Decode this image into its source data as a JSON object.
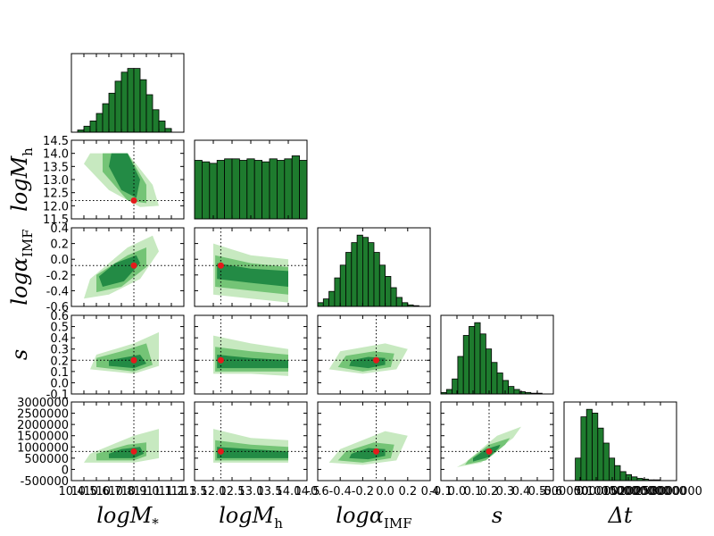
{
  "chart_data": {
    "type": "corner",
    "variables": [
      {
        "label": "logM",
        "sub": "*",
        "lim": [
          10.4,
          11.3
        ],
        "ticks": [
          10.4,
          10.5,
          10.6,
          10.7,
          10.8,
          10.9,
          {
            "value": 11,
            "label": "11.0"
          },
          11.1,
          11.2,
          11.3
        ],
        "bins": [
          10.45,
          10.5,
          10.55,
          10.6,
          10.65,
          10.7,
          10.75,
          10.8,
          10.85,
          10.9,
          10.95,
          11.0,
          11.05,
          11.1,
          11.15,
          11.2
        ],
        "counts": [
          3,
          8,
          15,
          25,
          38,
          52,
          68,
          80,
          85,
          85,
          70,
          50,
          30,
          15,
          5
        ]
      },
      {
        "label": "logM",
        "sub": "h",
        "lim": [
          11.5,
          14.5
        ],
        "ticks": [
          11.5,
          {
            "value": 12,
            "label": "12.0"
          },
          12.5,
          {
            "value": 13,
            "label": "13.0"
          },
          13.5,
          {
            "value": 14,
            "label": "14.0"
          },
          14.5
        ],
        "bins": [
          11.5,
          11.7,
          11.9,
          12.1,
          12.3,
          12.5,
          12.7,
          12.9,
          13.1,
          13.3,
          13.5,
          13.7,
          13.9,
          14.1,
          14.3,
          14.5
        ],
        "counts": [
          78,
          76,
          74,
          78,
          80,
          80,
          78,
          80,
          78,
          76,
          80,
          78,
          80,
          84,
          78
        ]
      },
      {
        "label": "logα",
        "sub": "IMF",
        "lim": [
          -0.6,
          0.4
        ],
        "ticks": [
          -0.6,
          -0.4,
          -0.2,
          {
            "value": 0,
            "label": "0.0"
          },
          0.2,
          0.4
        ],
        "bins": [
          -0.6,
          -0.55,
          -0.5,
          -0.45,
          -0.4,
          -0.35,
          -0.3,
          -0.25,
          -0.2,
          -0.15,
          -0.1,
          -0.05,
          0,
          0.05,
          0.1,
          0.15,
          0.2,
          0.25,
          0.3,
          0.35,
          0.4
        ],
        "counts": [
          5,
          10,
          20,
          38,
          55,
          72,
          85,
          95,
          92,
          85,
          72,
          55,
          40,
          25,
          12,
          5,
          2,
          1,
          0,
          0
        ]
      },
      {
        "label": "s",
        "sub": "",
        "lim": [
          -0.1,
          0.6
        ],
        "ticks": [
          -0.1,
          {
            "value": 0,
            "label": "0.0"
          },
          0.1,
          0.2,
          0.3,
          0.4,
          0.5,
          0.6
        ],
        "bins": [
          -0.1,
          -0.065,
          -0.03,
          0.005,
          0.04,
          0.075,
          0.11,
          0.145,
          0.18,
          0.215,
          0.25,
          0.285,
          0.32,
          0.355,
          0.39,
          0.425,
          0.46,
          0.495,
          0.53,
          0.565,
          0.6
        ],
        "counts": [
          2,
          6,
          20,
          50,
          78,
          90,
          95,
          80,
          60,
          42,
          28,
          18,
          10,
          6,
          3,
          2,
          1,
          1,
          0,
          0
        ]
      },
      {
        "label": "Δt",
        "sub": "",
        "lim": [
          -500000,
          3000000
        ],
        "ticks": [
          -500000,
          0,
          500000,
          1000000,
          1500000,
          2000000,
          2500000,
          3000000
        ],
        "bins": [
          -500000,
          -325000,
          -150000,
          25000,
          200000,
          375000,
          550000,
          725000,
          900000,
          1075000,
          1250000,
          1425000,
          1600000,
          1775000,
          1950000,
          2125000,
          2300000,
          2475000,
          2650000,
          2825000,
          3000000
        ],
        "counts": [
          0,
          0,
          30,
          85,
          95,
          90,
          70,
          50,
          30,
          20,
          12,
          8,
          5,
          3,
          2,
          1,
          1,
          0,
          0,
          0
        ]
      }
    ],
    "hist_ylim": [
      0,
      100
    ],
    "truth": [
      10.9,
      12.2,
      -0.08,
      0.2,
      800000
    ],
    "contour_colors": [
      "#c7e9c0",
      "#74c476",
      "#238b45"
    ],
    "hist_color": "#1e7b2e",
    "pairs": [
      {
        "col": 0,
        "row": 1,
        "contours": [
          {
            "x": [
              10.55,
              10.85,
              11.05,
              11.1,
              10.95,
              10.7,
              10.5
            ],
            "y": [
              14.0,
              14.0,
              12.8,
              12.0,
              11.95,
              12.6,
              13.6
            ]
          },
          {
            "x": [
              10.65,
              10.85,
              11.0,
              11.0,
              10.85,
              10.65
            ],
            "y": [
              14.0,
              14.0,
              12.8,
              12.1,
              12.2,
              13.3
            ]
          },
          {
            "x": [
              10.72,
              10.85,
              10.95,
              10.92,
              10.8,
              10.7
            ],
            "y": [
              14.0,
              14.0,
              13.0,
              12.3,
              12.6,
              13.5
            ]
          }
        ]
      },
      {
        "col": 0,
        "row": 2,
        "contours": [
          {
            "x": [
              10.5,
              10.7,
              10.95,
              11.1,
              11.05,
              10.85,
              10.55
            ],
            "y": [
              -0.5,
              -0.45,
              -0.25,
              0.1,
              0.3,
              0.15,
              -0.25
            ]
          },
          {
            "x": [
              10.6,
              10.8,
              11.0,
              11.0,
              10.85,
              10.6
            ],
            "y": [
              -0.42,
              -0.35,
              -0.1,
              0.15,
              0.05,
              -0.2
            ]
          },
          {
            "x": [
              10.65,
              10.82,
              10.95,
              10.92,
              10.75,
              10.62
            ],
            "y": [
              -0.35,
              -0.28,
              -0.05,
              0.05,
              -0.05,
              -0.22
            ]
          }
        ]
      },
      {
        "col": 1,
        "row": 2,
        "contours": [
          {
            "x": [
              12.0,
              13.0,
              14.0,
              14.0,
              13.0,
              12.0
            ],
            "y": [
              -0.45,
              -0.5,
              -0.55,
              0.0,
              0.05,
              0.2
            ]
          },
          {
            "x": [
              12.05,
              13.0,
              14.0,
              14.0,
              13.0,
              12.05
            ],
            "y": [
              -0.35,
              -0.4,
              -0.45,
              -0.1,
              -0.05,
              0.05
            ]
          },
          {
            "x": [
              12.1,
              13.0,
              14.0,
              14.0,
              13.0,
              12.1
            ],
            "y": [
              -0.25,
              -0.3,
              -0.35,
              -0.15,
              -0.12,
              -0.05
            ]
          }
        ]
      },
      {
        "col": 0,
        "row": 3,
        "contours": [
          {
            "x": [
              10.55,
              10.9,
              11.1,
              11.1,
              10.9,
              10.6
            ],
            "y": [
              0.12,
              0.08,
              0.15,
              0.45,
              0.35,
              0.25
            ]
          },
          {
            "x": [
              10.6,
              10.9,
              11.05,
              11.0,
              10.8,
              10.6
            ],
            "y": [
              0.14,
              0.1,
              0.16,
              0.35,
              0.28,
              0.22
            ]
          },
          {
            "x": [
              10.7,
              10.9,
              11.0,
              10.95,
              10.8,
              10.7
            ],
            "y": [
              0.15,
              0.13,
              0.17,
              0.25,
              0.22,
              0.2
            ]
          }
        ]
      },
      {
        "col": 1,
        "row": 3,
        "contours": [
          {
            "x": [
              12.0,
              13.0,
              14.0,
              14.0,
              13.0,
              12.0
            ],
            "y": [
              0.08,
              0.08,
              0.06,
              0.3,
              0.35,
              0.42
            ]
          },
          {
            "x": [
              12.05,
              13.0,
              14.0,
              14.0,
              13.0,
              12.05
            ],
            "y": [
              0.1,
              0.1,
              0.1,
              0.25,
              0.28,
              0.32
            ]
          },
          {
            "x": [
              12.1,
              13.0,
              14.0,
              14.0,
              13.0,
              12.1
            ],
            "y": [
              0.13,
              0.13,
              0.13,
              0.2,
              0.22,
              0.25
            ]
          }
        ]
      },
      {
        "col": 2,
        "row": 3,
        "contours": [
          {
            "x": [
              -0.5,
              -0.2,
              0.1,
              0.2,
              0.0,
              -0.4
            ],
            "y": [
              0.12,
              0.08,
              0.12,
              0.3,
              0.35,
              0.28
            ]
          },
          {
            "x": [
              -0.42,
              -0.2,
              0.05,
              0.08,
              -0.1,
              -0.35
            ],
            "y": [
              0.14,
              0.1,
              0.14,
              0.26,
              0.28,
              0.24
            ]
          },
          {
            "x": [
              -0.32,
              -0.15,
              0.0,
              0.0,
              -0.15,
              -0.3
            ],
            "y": [
              0.15,
              0.13,
              0.16,
              0.22,
              0.23,
              0.2
            ]
          }
        ]
      },
      {
        "col": 0,
        "row": 4,
        "contours": [
          {
            "x": [
              10.5,
              10.9,
              11.1,
              11.1,
              10.9,
              10.55
            ],
            "y": [
              300000,
              300000,
              500000,
              1800000,
              1500000,
              700000
            ]
          },
          {
            "x": [
              10.6,
              10.9,
              11.0,
              11.0,
              10.85,
              10.6
            ],
            "y": [
              400000,
              400000,
              600000,
              1200000,
              1100000,
              700000
            ]
          },
          {
            "x": [
              10.7,
              10.9,
              10.98,
              10.95,
              10.8,
              10.7
            ],
            "y": [
              500000,
              500000,
              700000,
              1000000,
              900000,
              700000
            ]
          }
        ]
      },
      {
        "col": 1,
        "row": 4,
        "contours": [
          {
            "x": [
              12.0,
              13.0,
              14.0,
              14.0,
              13.0,
              12.0
            ],
            "y": [
              300000,
              300000,
              300000,
              1300000,
              1400000,
              1800000
            ]
          },
          {
            "x": [
              12.05,
              13.0,
              14.0,
              14.0,
              13.0,
              12.05
            ],
            "y": [
              400000,
              400000,
              400000,
              1000000,
              1100000,
              1300000
            ]
          },
          {
            "x": [
              12.1,
              13.0,
              14.0,
              14.0,
              13.0,
              12.1
            ],
            "y": [
              500000,
              500000,
              500000,
              800000,
              900000,
              1000000
            ]
          }
        ]
      },
      {
        "col": 2,
        "row": 4,
        "contours": [
          {
            "x": [
              -0.5,
              -0.2,
              0.1,
              0.2,
              0.0,
              -0.4
            ],
            "y": [
              300000,
              200000,
              400000,
              1500000,
              1700000,
              900000
            ]
          },
          {
            "x": [
              -0.42,
              -0.2,
              0.05,
              0.08,
              -0.1,
              -0.35
            ],
            "y": [
              400000,
              300000,
              500000,
              1100000,
              1200000,
              800000
            ]
          },
          {
            "x": [
              -0.32,
              -0.15,
              0.0,
              0.0,
              -0.15,
              -0.3
            ],
            "y": [
              500000,
              450000,
              600000,
              900000,
              950000,
              700000
            ]
          }
        ]
      },
      {
        "col": 3,
        "row": 4,
        "contours": [
          {
            "x": [
              0.0,
              0.15,
              0.35,
              0.4,
              0.25,
              0.05
            ],
            "y": [
              100000,
              300000,
              1400000,
              1900000,
              1500000,
              300000
            ]
          },
          {
            "x": [
              0.05,
              0.18,
              0.3,
              0.33,
              0.2,
              0.07
            ],
            "y": [
              200000,
              400000,
              1100000,
              1400000,
              1100000,
              400000
            ]
          },
          {
            "x": [
              0.1,
              0.2,
              0.26,
              0.27,
              0.18,
              0.1
            ],
            "y": [
              350000,
              550000,
              950000,
              1100000,
              900000,
              500000
            ]
          }
        ]
      }
    ]
  }
}
